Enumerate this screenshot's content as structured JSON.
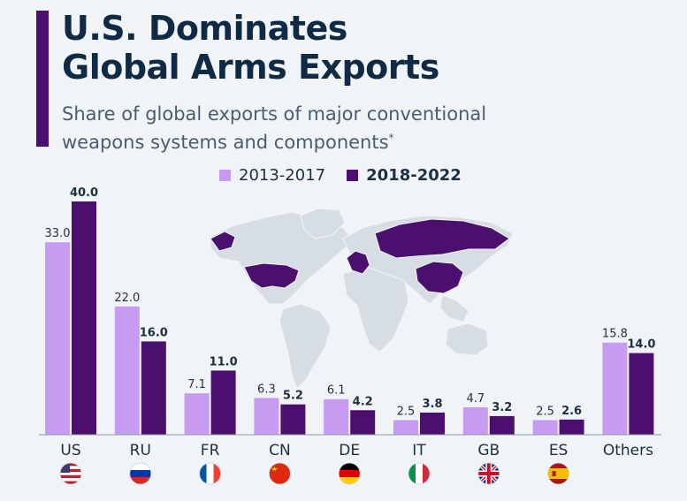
{
  "title_line1": "U.S. Dominates",
  "title_line2": "Global Arms Exports",
  "subtitle_line1": "Share of global exports of major conventional",
  "subtitle_line2": "weapons systems and components",
  "subtitle_mark": "*",
  "colors": {
    "accent": "#4b0f6e",
    "light": "#c79bf2",
    "dark": "#4b0f6e",
    "map_land": "#d6dde3",
    "title": "#0f2a44"
  },
  "chart_data": {
    "type": "bar",
    "categories": [
      "US",
      "RU",
      "FR",
      "CN",
      "DE",
      "IT",
      "GB",
      "ES",
      "Others"
    ],
    "series": [
      {
        "name": "2013-2017",
        "values": [
          33.0,
          22.0,
          7.1,
          6.3,
          6.1,
          2.5,
          4.7,
          2.5,
          15.8
        ]
      },
      {
        "name": "2018-2022",
        "values": [
          40.0,
          16.0,
          11.0,
          5.2,
          4.2,
          3.8,
          3.2,
          2.6,
          14.0
        ]
      }
    ],
    "flags": [
      "us-flag-icon",
      "russia-flag-icon",
      "france-flag-icon",
      "china-flag-icon",
      "germany-flag-icon",
      "italy-flag-icon",
      "uk-flag-icon",
      "spain-flag-icon",
      null
    ],
    "legend_position": "top-center",
    "grid": false,
    "ylim": [
      0,
      40
    ]
  }
}
